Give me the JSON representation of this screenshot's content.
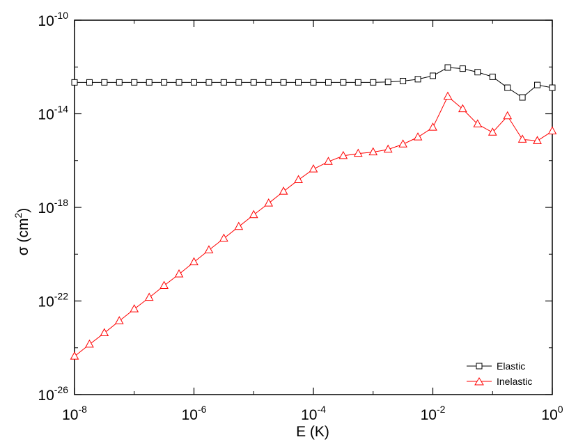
{
  "chart_data": {
    "type": "line",
    "xlabel": "E (K)",
    "ylabel_main": "σ (cm",
    "ylabel_sup": "2",
    "ylabel_close": ")",
    "xscale": "log",
    "yscale": "log",
    "xlim": [
      1e-08,
      1
    ],
    "ylim": [
      1e-26,
      1e-10
    ],
    "x_ticks": [
      {
        "value": 1e-08,
        "base": "10",
        "exp": "-8"
      },
      {
        "value": 1e-06,
        "base": "10",
        "exp": "-6"
      },
      {
        "value": 0.0001,
        "base": "10",
        "exp": "-4"
      },
      {
        "value": 0.01,
        "base": "10",
        "exp": "-2"
      },
      {
        "value": 1,
        "base": "10",
        "exp": "0"
      }
    ],
    "y_ticks": [
      {
        "value": 1e-26,
        "base": "10",
        "exp": "-26"
      },
      {
        "value": 1e-22,
        "base": "10",
        "exp": "-22"
      },
      {
        "value": 1e-18,
        "base": "10",
        "exp": "-18"
      },
      {
        "value": 1e-14,
        "base": "10",
        "exp": "-14"
      },
      {
        "value": 1e-10,
        "base": "10",
        "exp": "-10"
      }
    ],
    "grid": false,
    "legend_position": "bottom-right",
    "series": [
      {
        "name": "Elastic",
        "color": "#000000",
        "marker": "square",
        "x": [
          1e-08,
          1.78e-08,
          3.16e-08,
          5.62e-08,
          1e-07,
          1.78e-07,
          3.16e-07,
          5.62e-07,
          1e-06,
          1.78e-06,
          3.16e-06,
          5.62e-06,
          1e-05,
          1.78e-05,
          3.16e-05,
          5.62e-05,
          0.0001,
          0.000178,
          0.000316,
          0.000562,
          0.001,
          0.00178,
          0.00316,
          0.00562,
          0.01,
          0.0178,
          0.0316,
          0.0562,
          0.1,
          0.178,
          0.316,
          0.562,
          1
        ],
        "y": [
          2.2e-13,
          2.2e-13,
          2.2e-13,
          2.2e-13,
          2.2e-13,
          2.2e-13,
          2.2e-13,
          2.2e-13,
          2.2e-13,
          2.2e-13,
          2.2e-13,
          2.2e-13,
          2.2e-13,
          2.2e-13,
          2.2e-13,
          2.2e-13,
          2.2e-13,
          2.2e-13,
          2.2e-13,
          2.2e-13,
          2.2e-13,
          2.3e-13,
          2.5e-13,
          3e-13,
          4.2e-13,
          9.5e-13,
          8.5e-13,
          6e-13,
          3.8e-13,
          1.3e-13,
          5e-14,
          1.7e-13,
          1.3e-13
        ]
      },
      {
        "name": "Inelastic",
        "color": "#ff0000",
        "marker": "triangle",
        "x": [
          1e-08,
          1.78e-08,
          3.16e-08,
          5.62e-08,
          1e-07,
          1.78e-07,
          3.16e-07,
          5.62e-07,
          1e-06,
          1.78e-06,
          3.16e-06,
          5.62e-06,
          1e-05,
          1.78e-05,
          3.16e-05,
          5.62e-05,
          0.0001,
          0.000178,
          0.000316,
          0.000562,
          0.001,
          0.00178,
          0.00316,
          0.00562,
          0.01,
          0.0178,
          0.0316,
          0.0562,
          0.1,
          0.178,
          0.316,
          0.562,
          1
        ],
        "y": [
          4.3e-25,
          1.4e-24,
          4.3e-24,
          1.4e-23,
          4.5e-23,
          1.4e-22,
          4.5e-22,
          1.4e-21,
          4.6e-21,
          1.5e-20,
          4.7e-20,
          1.5e-19,
          4.8e-19,
          1.5e-18,
          4.8e-18,
          1.5e-17,
          4.3e-17,
          9e-17,
          1.6e-16,
          2e-16,
          2.3e-16,
          3e-16,
          5e-16,
          1e-15,
          2.6e-15,
          5.5e-14,
          1.6e-14,
          3.6e-15,
          1.6e-15,
          8e-15,
          8e-16,
          7e-16,
          1.8e-15
        ]
      }
    ]
  }
}
